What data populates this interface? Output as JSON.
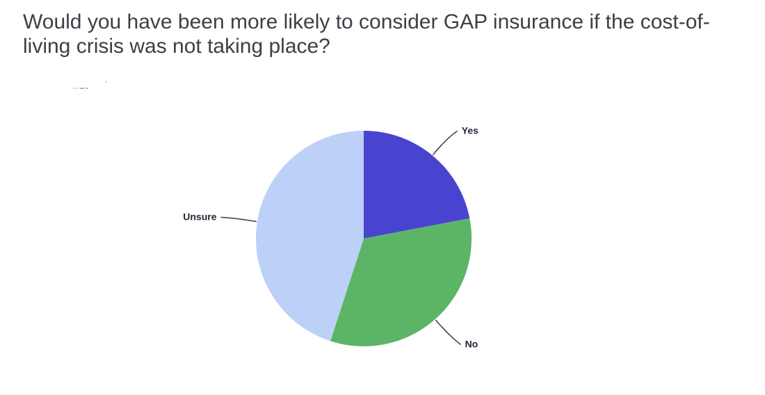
{
  "page": {
    "background": "#ffffff"
  },
  "title": {
    "text": "Would you have been more likely to consider GAP insurance if the cost-of-living crisis was not taking place?",
    "lines": [
      "Would you have been more likely to consider GAP insurance if the cost-of-",
      "living crisis was not taking place?"
    ],
    "color": "#3e3e46"
  },
  "chart_data": {
    "type": "pie",
    "title": "Would you have been more likely to consider GAP insurance if the cost-of-living crisis was not taking place?",
    "categories": [
      "Yes",
      "No",
      "Unsure"
    ],
    "values": [
      22,
      33,
      45
    ],
    "values_note": "percent of circle, estimated from slice angles (no numeric labels shown)",
    "slices": [
      {
        "label": "Yes",
        "value": 22,
        "color": "#4944d0"
      },
      {
        "label": "No",
        "value": 33,
        "color": "#5cb566"
      },
      {
        "label": "Unsure",
        "value": 45,
        "color": "#bdd0f7"
      }
    ],
    "start_angle_deg": 0,
    "direction": "clockwise",
    "labels": "outside with curved leader lines",
    "leader_line_color": "#304043",
    "label_text_color": "#252538",
    "legend": "none"
  }
}
